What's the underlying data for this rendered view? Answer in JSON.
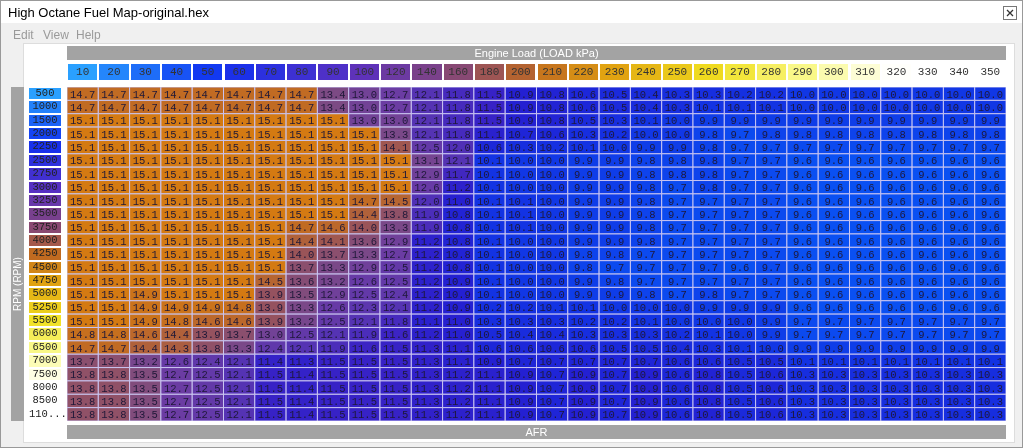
{
  "chart_data": {
    "type": "heatmap",
    "title": "High Octane Fuel Map-original.hex",
    "xlabel": "Engine Load (LOAD kPa)",
    "ylabel": "RPM (RPM)",
    "clabel": "AFR",
    "annotations": [
      "Edit",
      "View",
      "Help"
    ],
    "data_labels": true,
    "categories": [
      "10",
      "20",
      "30",
      "40",
      "50",
      "60",
      "70",
      "80",
      "90",
      "100",
      "120",
      "140",
      "160",
      "180",
      "200",
      "210",
      "220",
      "230",
      "240",
      "250",
      "260",
      "270",
      "280",
      "290",
      "300",
      "310",
      "320",
      "330",
      "340",
      "350"
    ],
    "y_categories": [
      "500",
      "1000",
      "1500",
      "2000",
      "2250",
      "2500",
      "2750",
      "3000",
      "3250",
      "3500",
      "3750",
      "4000",
      "4250",
      "4500",
      "4750",
      "5000",
      "5250",
      "5500",
      "6000",
      "6500",
      "7000",
      "7500",
      "8000",
      "8500",
      "110..."
    ],
    "cells": [
      [
        14.7,
        14.7,
        14.7,
        14.7,
        14.7,
        14.7,
        14.7,
        14.7,
        13.4,
        13.0,
        12.7,
        12.1,
        11.8,
        11.5,
        10.9,
        10.8,
        10.6,
        10.5,
        10.4,
        10.3,
        10.3,
        10.2,
        10.2,
        10.0,
        10.0,
        10.0,
        10.0,
        10.0,
        10.0,
        10.0
      ],
      [
        14.7,
        14.7,
        14.7,
        14.7,
        14.7,
        14.7,
        14.7,
        14.7,
        13.4,
        13.0,
        12.7,
        12.1,
        11.8,
        11.5,
        10.9,
        10.8,
        10.6,
        10.5,
        10.4,
        10.3,
        10.1,
        10.1,
        10.1,
        10.0,
        10.0,
        10.0,
        10.0,
        10.0,
        10.0,
        10.0
      ],
      [
        15.1,
        15.1,
        15.1,
        15.1,
        15.1,
        15.1,
        15.1,
        15.1,
        15.1,
        13.0,
        13.0,
        12.1,
        11.8,
        11.5,
        10.9,
        10.8,
        10.5,
        10.3,
        10.1,
        10.0,
        9.9,
        9.9,
        9.9,
        9.9,
        9.9,
        9.9,
        9.9,
        9.9,
        9.9,
        9.9
      ],
      [
        15.1,
        15.1,
        15.1,
        15.1,
        15.1,
        15.1,
        15.1,
        15.1,
        15.1,
        15.1,
        13.3,
        12.1,
        11.8,
        11.1,
        10.7,
        10.6,
        10.3,
        10.2,
        10.0,
        10.0,
        9.8,
        9.7,
        9.8,
        9.8,
        9.8,
        9.8,
        9.8,
        9.8,
        9.8,
        9.8
      ],
      [
        15.1,
        15.1,
        15.1,
        15.1,
        15.1,
        15.1,
        15.1,
        15.1,
        15.1,
        15.1,
        14.1,
        12.5,
        12.0,
        10.6,
        10.3,
        10.2,
        10.1,
        10.0,
        9.9,
        9.9,
        9.8,
        9.7,
        9.7,
        9.7,
        9.7,
        9.7,
        9.7,
        9.7,
        9.7,
        9.7
      ],
      [
        15.1,
        15.1,
        15.1,
        15.1,
        15.1,
        15.1,
        15.1,
        15.1,
        15.1,
        15.1,
        15.1,
        13.1,
        12.1,
        10.1,
        10.0,
        10.0,
        9.9,
        9.9,
        9.8,
        9.8,
        9.8,
        9.7,
        9.7,
        9.6,
        9.6,
        9.6,
        9.6,
        9.6,
        9.6,
        9.6
      ],
      [
        15.1,
        15.1,
        15.1,
        15.1,
        15.1,
        15.1,
        15.1,
        15.1,
        15.1,
        15.1,
        15.1,
        12.9,
        11.7,
        10.1,
        10.0,
        10.0,
        9.9,
        9.9,
        9.8,
        9.8,
        9.8,
        9.7,
        9.7,
        9.6,
        9.6,
        9.6,
        9.6,
        9.6,
        9.6,
        9.6
      ],
      [
        15.1,
        15.1,
        15.1,
        15.1,
        15.1,
        15.1,
        15.1,
        15.1,
        15.1,
        15.1,
        15.1,
        12.6,
        11.2,
        10.1,
        10.0,
        10.0,
        9.9,
        9.9,
        9.8,
        9.7,
        9.8,
        9.7,
        9.7,
        9.6,
        9.6,
        9.6,
        9.6,
        9.6,
        9.6,
        9.6
      ],
      [
        15.1,
        15.1,
        15.1,
        15.1,
        15.1,
        15.1,
        15.1,
        15.1,
        15.1,
        14.7,
        14.5,
        12.0,
        11.0,
        10.1,
        10.1,
        10.0,
        9.9,
        9.9,
        9.8,
        9.7,
        9.7,
        9.7,
        9.7,
        9.6,
        9.6,
        9.6,
        9.6,
        9.6,
        9.6,
        9.6
      ],
      [
        15.1,
        15.1,
        15.1,
        15.1,
        15.1,
        15.1,
        15.1,
        15.1,
        15.1,
        14.4,
        13.8,
        11.9,
        10.8,
        10.1,
        10.1,
        10.0,
        9.9,
        9.9,
        9.8,
        9.7,
        9.7,
        9.7,
        9.7,
        9.6,
        9.6,
        9.6,
        9.6,
        9.6,
        9.6,
        9.6
      ],
      [
        15.1,
        15.1,
        15.1,
        15.1,
        15.1,
        15.1,
        15.1,
        14.7,
        14.6,
        14.0,
        13.3,
        11.9,
        10.8,
        10.1,
        10.1,
        10.0,
        9.9,
        9.9,
        9.8,
        9.7,
        9.7,
        9.7,
        9.7,
        9.6,
        9.6,
        9.6,
        9.6,
        9.6,
        9.6,
        9.6
      ],
      [
        15.1,
        15.1,
        15.1,
        15.1,
        15.1,
        15.1,
        15.1,
        14.4,
        14.1,
        13.6,
        12.9,
        11.2,
        10.8,
        10.1,
        10.0,
        10.0,
        9.9,
        9.9,
        9.8,
        9.7,
        9.7,
        9.7,
        9.7,
        9.6,
        9.6,
        9.6,
        9.6,
        9.6,
        9.6,
        9.6
      ],
      [
        15.1,
        15.1,
        15.1,
        15.1,
        15.1,
        15.1,
        15.1,
        14.0,
        13.7,
        13.3,
        12.7,
        11.2,
        10.8,
        10.1,
        10.0,
        10.0,
        9.8,
        9.8,
        9.7,
        9.7,
        9.7,
        9.7,
        9.7,
        9.6,
        9.6,
        9.6,
        9.6,
        9.6,
        9.6,
        9.6
      ],
      [
        15.1,
        15.1,
        15.1,
        15.1,
        15.1,
        15.1,
        15.1,
        13.7,
        13.3,
        12.9,
        12.5,
        11.2,
        10.8,
        10.1,
        10.0,
        10.0,
        9.8,
        9.7,
        9.7,
        9.7,
        9.7,
        9.6,
        9.7,
        9.6,
        9.6,
        9.6,
        9.6,
        9.6,
        9.6,
        9.6
      ],
      [
        15.1,
        15.1,
        15.1,
        15.1,
        15.1,
        15.1,
        14.5,
        13.6,
        13.2,
        12.6,
        12.5,
        11.2,
        10.9,
        10.1,
        10.0,
        10.0,
        9.9,
        9.8,
        9.7,
        9.7,
        9.7,
        9.7,
        9.7,
        9.6,
        9.6,
        9.6,
        9.6,
        9.6,
        9.6,
        9.6
      ],
      [
        15.1,
        15.1,
        14.9,
        15.1,
        15.1,
        15.1,
        13.9,
        13.5,
        12.9,
        12.5,
        12.4,
        11.2,
        10.9,
        10.1,
        10.0,
        10.0,
        9.9,
        9.9,
        9.8,
        9.7,
        9.8,
        9.7,
        9.7,
        9.6,
        9.6,
        9.6,
        9.6,
        9.6,
        9.6,
        9.6
      ],
      [
        15.1,
        15.1,
        14.9,
        14.9,
        14.9,
        14.8,
        13.9,
        13.3,
        12.6,
        12.3,
        12.1,
        11.2,
        10.9,
        10.2,
        10.2,
        10.1,
        10.1,
        10.0,
        10.0,
        10.0,
        9.9,
        9.9,
        9.9,
        9.6,
        9.6,
        9.6,
        9.6,
        9.6,
        9.6,
        9.6
      ],
      [
        15.1,
        15.1,
        14.9,
        14.8,
        14.6,
        14.6,
        13.9,
        13.2,
        12.5,
        12.1,
        11.8,
        11.1,
        11.0,
        10.3,
        10.3,
        10.3,
        10.2,
        10.2,
        10.1,
        10.0,
        10.0,
        10.0,
        9.9,
        9.7,
        9.7,
        9.7,
        9.7,
        9.7,
        9.7,
        9.7
      ],
      [
        14.8,
        14.8,
        14.6,
        14.4,
        13.9,
        13.7,
        13.0,
        12.5,
        12.1,
        11.9,
        11.6,
        11.2,
        11.0,
        10.5,
        10.4,
        10.4,
        10.3,
        10.3,
        10.3,
        10.2,
        10.1,
        10.0,
        9.9,
        9.7,
        9.7,
        9.7,
        9.7,
        9.7,
        9.7,
        9.7
      ],
      [
        14.7,
        14.7,
        14.4,
        14.3,
        13.8,
        13.3,
        12.4,
        12.1,
        11.9,
        11.6,
        11.5,
        11.3,
        11.1,
        10.6,
        10.6,
        10.6,
        10.6,
        10.5,
        10.5,
        10.4,
        10.3,
        10.1,
        10.0,
        9.9,
        9.9,
        9.9,
        9.9,
        9.9,
        9.9,
        9.9
      ],
      [
        13.7,
        13.7,
        13.2,
        12.6,
        12.4,
        12.1,
        11.4,
        11.3,
        11.5,
        11.5,
        11.5,
        11.3,
        11.1,
        10.9,
        10.7,
        10.7,
        10.7,
        10.7,
        10.7,
        10.6,
        10.6,
        10.5,
        10.5,
        10.1,
        10.1,
        10.1,
        10.1,
        10.1,
        10.1,
        10.1
      ],
      [
        13.8,
        13.8,
        13.5,
        12.7,
        12.5,
        12.1,
        11.5,
        11.4,
        11.5,
        11.5,
        11.5,
        11.3,
        11.2,
        11.1,
        10.9,
        10.7,
        10.9,
        10.7,
        10.9,
        10.6,
        10.8,
        10.5,
        10.6,
        10.3,
        10.3,
        10.3,
        10.3,
        10.3,
        10.3,
        10.3
      ],
      [
        13.8,
        13.8,
        13.5,
        12.7,
        12.5,
        12.1,
        11.5,
        11.4,
        11.5,
        11.5,
        11.5,
        11.3,
        11.2,
        11.1,
        10.9,
        10.7,
        10.9,
        10.7,
        10.9,
        10.6,
        10.8,
        10.5,
        10.6,
        10.3,
        10.3,
        10.3,
        10.3,
        10.3,
        10.3,
        10.3
      ],
      [
        13.8,
        13.8,
        13.5,
        12.7,
        12.5,
        12.1,
        11.5,
        11.4,
        11.5,
        11.5,
        11.5,
        11.3,
        11.2,
        11.1,
        10.9,
        10.7,
        10.9,
        10.7,
        10.9,
        10.6,
        10.8,
        10.5,
        10.6,
        10.3,
        10.3,
        10.3,
        10.3,
        10.3,
        10.3,
        10.3
      ],
      [
        13.8,
        13.8,
        13.5,
        12.7,
        12.5,
        12.1,
        11.5,
        11.4,
        11.5,
        11.5,
        11.5,
        11.3,
        11.2,
        11.1,
        10.9,
        10.7,
        10.9,
        10.7,
        10.9,
        10.6,
        10.8,
        10.5,
        10.6,
        10.3,
        10.3,
        10.3,
        10.3,
        10.3,
        10.3,
        10.3
      ]
    ],
    "cell_labels": [
      [
        "14.7",
        "14.7",
        "14.7",
        "14.7",
        "14.7",
        "14.7",
        "14.7",
        "14.7",
        "13.4",
        "13.0",
        "12.7",
        "12.1",
        "11.8",
        "11.5",
        "10.9",
        "10.8",
        "10.6",
        "10.5",
        "10.4",
        "10.3",
        "10.3",
        "10.2",
        "10.2",
        "10.0",
        "10.0",
        "10.0",
        "10.0",
        "10.0",
        "10.0",
        "10.0"
      ],
      [
        "14.7",
        "14.7",
        "14.7",
        "14.7",
        "14.7",
        "14.7",
        "14.7",
        "14.7",
        "13.4",
        "13.0",
        "12.7",
        "12.1",
        "11.8",
        "11.5",
        "10.9",
        "10.8",
        "10.6",
        "10.5",
        "10.4",
        "10.3",
        "10.1",
        "10.1",
        "10.1",
        "10.0",
        "10.0",
        "10.0",
        "10.0",
        "10.0",
        "10.0",
        "10.0"
      ],
      [
        "15.1",
        "15.1",
        "15.1",
        "15.1",
        "15.1",
        "15.1",
        "15.1",
        "15.1",
        "15.1",
        "13.0",
        "13.0",
        "12.1",
        "11.8",
        "11.5",
        "10.9",
        "10.8",
        "10.5",
        "10.3",
        "10.1",
        "10.0",
        "9.9",
        "9.9",
        "9.9",
        "9.9",
        "9.9",
        "9.9",
        "9.9",
        "9.9",
        "9.9",
        "9.9"
      ],
      [
        "15.1",
        "15.1",
        "15.1",
        "15.1",
        "15.1",
        "15.1",
        "15.1",
        "15.1",
        "15.1",
        "15.1",
        "13.3",
        "12.1",
        "11.8",
        "11.1",
        "10.7",
        "10.6",
        "10.3",
        "10.2",
        "10.0",
        "10.0",
        "9.8",
        "9.7",
        "9.8",
        "9.8",
        "9.8",
        "9.8",
        "9.8",
        "9.8",
        "9.8",
        "9.8"
      ],
      [
        "15.1",
        "15.1",
        "15.1",
        "15.1",
        "15.1",
        "15.1",
        "15.1",
        "15.1",
        "15.1",
        "15.1",
        "14.1",
        "12.5",
        "12.0",
        "10.6",
        "10.3",
        "10.2",
        "10.1",
        "10.0",
        "9.9",
        "9.9",
        "9.8",
        "9.7",
        "9.7",
        "9.7",
        "9.7",
        "9.7",
        "9.7",
        "9.7",
        "9.7",
        "9.7"
      ],
      [
        "15.1",
        "15.1",
        "15.1",
        "15.1",
        "15.1",
        "15.1",
        "15.1",
        "15.1",
        "15.1",
        "15.1",
        "15.1",
        "13.1",
        "12.1",
        "10.1",
        "10.0",
        "10.0",
        "9.9",
        "9.9",
        "9.8",
        "9.8",
        "9.8",
        "9.7",
        "9.7",
        "9.6",
        "9.6",
        "9.6",
        "9.6",
        "9.6",
        "9.6",
        "9.6"
      ],
      [
        "15.1",
        "15.1",
        "15.1",
        "15.1",
        "15.1",
        "15.1",
        "15.1",
        "15.1",
        "15.1",
        "15.1",
        "15.1",
        "12.9",
        "11.7",
        "10.1",
        "10.0",
        "10.0",
        "9.9",
        "9.9",
        "9.8",
        "9.8",
        "9.8",
        "9.7",
        "9.7",
        "9.6",
        "9.6",
        "9.6",
        "9.6",
        "9.6",
        "9.6",
        "9.6"
      ],
      [
        "15.1",
        "15.1",
        "15.1",
        "15.1",
        "15.1",
        "15.1",
        "15.1",
        "15.1",
        "15.1",
        "15.1",
        "15.1",
        "12.6",
        "11.2",
        "10.1",
        "10.0",
        "10.0",
        "9.9",
        "9.9",
        "9.8",
        "9.7",
        "9.8",
        "9.7",
        "9.7",
        "9.6",
        "9.6",
        "9.6",
        "9.6",
        "9.6",
        "9.6",
        "9.6"
      ],
      [
        "15.1",
        "15.1",
        "15.1",
        "15.1",
        "15.1",
        "15.1",
        "15.1",
        "15.1",
        "15.1",
        "14.7",
        "14.5",
        "12.0",
        "11.0",
        "10.1",
        "10.1",
        "10.0",
        "9.9",
        "9.9",
        "9.8",
        "9.7",
        "9.7",
        "9.7",
        "9.7",
        "9.6",
        "9.6",
        "9.6",
        "9.6",
        "9.6",
        "9.6",
        "9.6"
      ],
      [
        "15.1",
        "15.1",
        "15.1",
        "15.1",
        "15.1",
        "15.1",
        "15.1",
        "15.1",
        "15.1",
        "14.4",
        "13.8",
        "11.9",
        "10.8",
        "10.1",
        "10.1",
        "10.0",
        "9.9",
        "9.9",
        "9.8",
        "9.7",
        "9.7",
        "9.7",
        "9.7",
        "9.6",
        "9.6",
        "9.6",
        "9.6",
        "9.6",
        "9.6",
        "9.6"
      ],
      [
        "15.1",
        "15.1",
        "15.1",
        "15.1",
        "15.1",
        "15.1",
        "15.1",
        "14.7",
        "14.6",
        "14.0",
        "13.3",
        "11.9",
        "10.8",
        "10.1",
        "10.1",
        "10.0",
        "9.9",
        "9.9",
        "9.8",
        "9.7",
        "9.7",
        "9.7",
        "9.7",
        "9.6",
        "9.6",
        "9.6",
        "9.6",
        "9.6",
        "9.6",
        "9.6"
      ],
      [
        "15.1",
        "15.1",
        "15.1",
        "15.1",
        "15.1",
        "15.1",
        "15.1",
        "14.4",
        "14.1",
        "13.6",
        "12.9",
        "11.2",
        "10.8",
        "10.1",
        "10.0",
        "10.0",
        "9.9",
        "9.9",
        "9.8",
        "9.7",
        "9.7",
        "9.7",
        "9.7",
        "9.6",
        "9.6",
        "9.6",
        "9.6",
        "9.6",
        "9.6",
        "9.6"
      ],
      [
        "15.1",
        "15.1",
        "15.1",
        "15.1",
        "15.1",
        "15.1",
        "15.1",
        "14.0",
        "13.7",
        "13.3",
        "12.7",
        "11.2",
        "10.8",
        "10.1",
        "10.0",
        "10.0",
        "9.8",
        "9.8",
        "9.7",
        "9.7",
        "9.7",
        "9.7",
        "9.7",
        "9.6",
        "9.6",
        "9.6",
        "9.6",
        "9.6",
        "9.6",
        "9.6"
      ],
      [
        "15.1",
        "15.1",
        "15.1",
        "15.1",
        "15.1",
        "15.1",
        "15.1",
        "13.7",
        "13.3",
        "12.9",
        "12.5",
        "11.2",
        "10.8",
        "10.1",
        "10.0",
        "10.0",
        "9.8",
        "9.7",
        "9.7",
        "9.7",
        "9.7",
        "9.6",
        "9.7",
        "9.6",
        "9.6",
        "9.6",
        "9.6",
        "9.6",
        "9.6",
        "9.6"
      ],
      [
        "15.1",
        "15.1",
        "15.1",
        "15.1",
        "15.1",
        "15.1",
        "14.5",
        "13.6",
        "13.2",
        "12.6",
        "12.5",
        "11.2",
        "10.9",
        "10.1",
        "10.0",
        "10.0",
        "9.9",
        "9.8",
        "9.7",
        "9.7",
        "9.7",
        "9.7",
        "9.7",
        "9.6",
        "9.6",
        "9.6",
        "9.6",
        "9.6",
        "9.6",
        "9.6"
      ],
      [
        "15.1",
        "15.1",
        "14.9",
        "15.1",
        "15.1",
        "15.1",
        "13.9",
        "13.5",
        "12.9",
        "12.5",
        "12.4",
        "11.2",
        "10.9",
        "10.1",
        "10.0",
        "10.0",
        "9.9",
        "9.9",
        "9.8",
        "9.7",
        "9.8",
        "9.7",
        "9.7",
        "9.6",
        "9.6",
        "9.6",
        "9.6",
        "9.6",
        "9.6",
        "9.6"
      ],
      [
        "15.1",
        "15.1",
        "14.9",
        "14.9",
        "14.9",
        "14.8",
        "13.9",
        "13.3",
        "12.6",
        "12.3",
        "12.1",
        "11.2",
        "10.9",
        "10.2",
        "10.2",
        "10.1",
        "10.1",
        "10.0",
        "10.0",
        "10.0",
        "9.9",
        "9.9",
        "9.9",
        "9.6",
        "9.6",
        "9.6",
        "9.6",
        "9.6",
        "9.6",
        "9.6"
      ],
      [
        "15.1",
        "15.1",
        "14.9",
        "14.8",
        "14.6",
        "14.6",
        "13.9",
        "13.2",
        "12.5",
        "12.1",
        "11.8",
        "11.1",
        "11.0",
        "10.3",
        "10.3",
        "10.3",
        "10.2",
        "10.2",
        "10.1",
        "10.0",
        "10.0",
        "10.0",
        "9.9",
        "9.7",
        "9.7",
        "9.7",
        "9.7",
        "9.7",
        "9.7",
        "9.7"
      ],
      [
        "14.8",
        "14.8",
        "14.6",
        "14.4",
        "13.9",
        "13.7",
        "13.0",
        "12.5",
        "12.1",
        "11.9",
        "11.6",
        "11.2",
        "11.0",
        "10.5",
        "10.4",
        "10.4",
        "10.3",
        "10.3",
        "10.3",
        "10.2",
        "10.1",
        "10.0",
        "9.9",
        "9.7",
        "9.7",
        "9.7",
        "9.7",
        "9.7",
        "9.7",
        "9.7"
      ],
      [
        "14.7",
        "14.7",
        "14.4",
        "14.3",
        "13.8",
        "13.3",
        "12.4",
        "12.1",
        "11.9",
        "11.6",
        "11.5",
        "11.3",
        "11.1",
        "10.6",
        "10.6",
        "10.6",
        "10.6",
        "10.5",
        "10.5",
        "10.4",
        "10.3",
        "10.1",
        "10.0",
        "9.9",
        "9.9",
        "9.9",
        "9.9",
        "9.9",
        "9.9",
        "9.9"
      ],
      [
        "13.7",
        "13.7",
        "13.2",
        "12.6",
        "12.4",
        "12.1",
        "11.4",
        "11.3",
        "11.5",
        "11.5",
        "11.5",
        "11.3",
        "11.1",
        "10.9",
        "10.7",
        "10.7",
        "10.7",
        "10.7",
        "10.7",
        "10.6",
        "10.6",
        "10.5",
        "10.5",
        "10.1",
        "10.1",
        "10.1",
        "10.1",
        "10.1",
        "10.1",
        "10.1"
      ],
      [
        "13.8",
        "13.8",
        "13.5",
        "12.7",
        "12.5",
        "12.1",
        "11.5",
        "11.4",
        "11.5",
        "11.5",
        "11.5",
        "11.3",
        "11.2",
        "11.1",
        "10.9",
        "10.7",
        "10.9",
        "10.7",
        "10.9",
        "10.6",
        "10.8",
        "10.5",
        "10.6",
        "10.3",
        "10.3",
        "10.3",
        "10.3",
        "10.3",
        "10.3",
        "10.3"
      ],
      [
        "13.8",
        "13.8",
        "13.5",
        "12.7",
        "12.5",
        "12.1",
        "11.5",
        "11.4",
        "11.5",
        "11.5",
        "11.5",
        "11.3",
        "11.2",
        "11.1",
        "10.9",
        "10.7",
        "10.9",
        "10.7",
        "10.9",
        "10.6",
        "10.8",
        "10.5",
        "10.6",
        "10.3",
        "10.3",
        "10.3",
        "10.3",
        "10.3",
        "10.3",
        "10.3"
      ],
      [
        "13.8",
        "13.8",
        "13.5",
        "12.7",
        "12.5",
        "12.1",
        "11.5",
        "11.4",
        "11.5",
        "11.5",
        "11.5",
        "11.3",
        "11.2",
        "11.1",
        "10.9",
        "10.7",
        "10.9",
        "10.7",
        "10.9",
        "10.6",
        "10.8",
        "10.5",
        "10.6",
        "10.3",
        "10.3",
        "10.3",
        "10.3",
        "10.3",
        "10.3",
        "10.3"
      ],
      [
        "13.8",
        "13.8",
        "13.5",
        "12.7",
        "12.5",
        "12.1",
        "11.5",
        "11.4",
        "11.5",
        "11.5",
        "11.5",
        "11.3",
        "11.2",
        "11.1",
        "10.9",
        "10.7",
        "10.9",
        "10.7",
        "10.9",
        "10.6",
        "10.8",
        "10.5",
        "10.6",
        "10.3",
        "10.3",
        "10.3",
        "10.3",
        "10.3",
        "10.3",
        "10.3"
      ]
    ]
  }
}
